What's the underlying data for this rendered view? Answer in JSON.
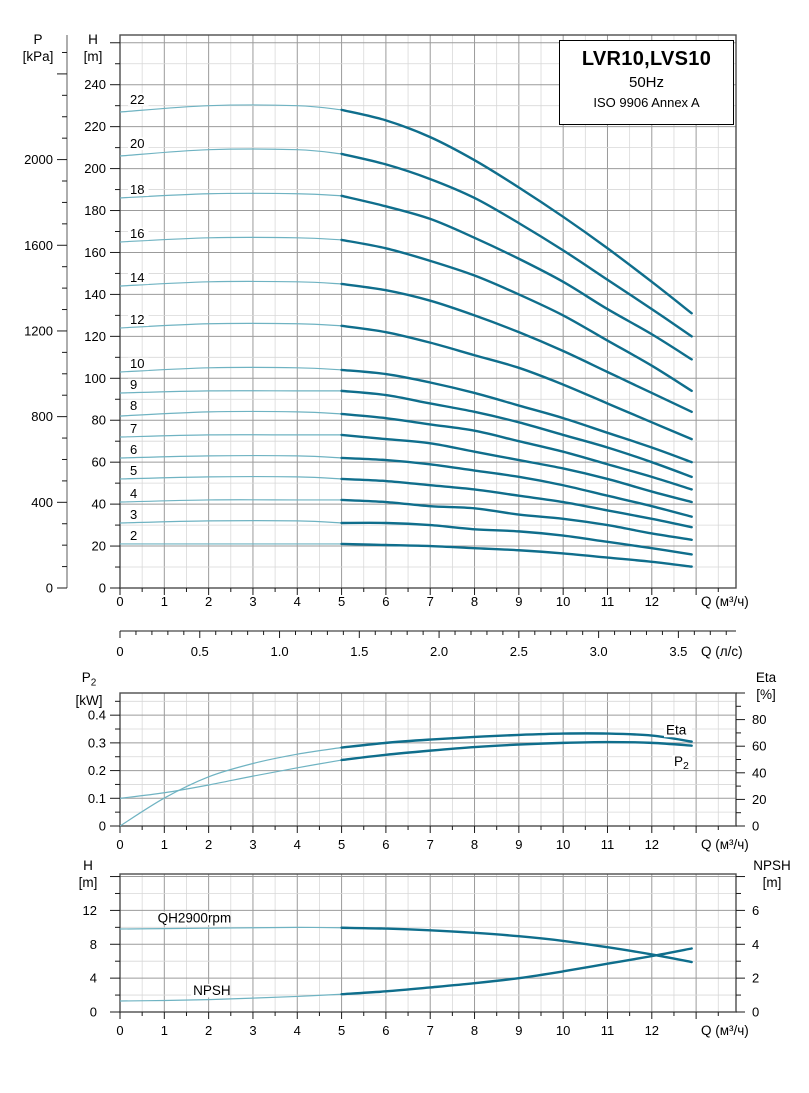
{
  "colors": {
    "curve_thick": "#0f6e8c",
    "curve_thin": "#6fb3c2",
    "grid_minor": "#d8d8d8",
    "grid_major": "#9b9b9b",
    "border": "#4d4d4d",
    "tick": "#1a1a1a",
    "text": "#000000",
    "background": "#ffffff"
  },
  "title_box": {
    "model": "LVR10,LVS10",
    "frequency": "50Hz",
    "standard": "ISO 9906 Annex A"
  },
  "headers": {
    "p": {
      "name": "P",
      "unit": "[kPa]"
    },
    "h_main": {
      "name": "H",
      "unit": "[m]"
    },
    "p2": {
      "name": "P",
      "sub": "2",
      "unit": "[kW]"
    },
    "eta": {
      "name": "Eta",
      "unit": "[%]"
    },
    "h_qh": {
      "name": "H",
      "unit": "[m]"
    },
    "npsh": {
      "name": "NPSH",
      "unit": "[m]"
    }
  },
  "chart_data": [
    {
      "name": "qh-main-chart",
      "type": "line",
      "title": "LVR10,LVS10 50Hz ISO 9906 Annex A",
      "x": {
        "label": "Q (м³/ч)",
        "min": 0,
        "max": 13.9,
        "major": 1,
        "minor": 0.5,
        "tick_values": [
          0,
          1,
          2,
          3,
          4,
          5,
          6,
          7,
          8,
          9,
          10,
          11,
          12
        ],
        "tick_labels": [
          "0",
          "1",
          "2",
          "3",
          "4",
          "5",
          "6",
          "7",
          "8",
          "9",
          "10",
          "11",
          "12"
        ]
      },
      "x2": {
        "label": "Q (л/с)",
        "factor_to_main": 3.6,
        "minor": 0.1,
        "major": 0.5,
        "max": 3.8,
        "tick_values": [
          0,
          0.5,
          1,
          1.5,
          2,
          2.5,
          3,
          3.5
        ],
        "tick_labels": [
          "0",
          "0.5",
          "1.0",
          "1.5",
          "2.0",
          "2.5",
          "3.0",
          "3.5"
        ]
      },
      "y_left": {
        "label": "H [m]",
        "min": 0,
        "max": 263.7,
        "grid_minor": 10,
        "grid_major": 20,
        "tick_values": [
          0,
          20,
          40,
          60,
          80,
          100,
          120,
          140,
          160,
          180,
          200,
          220,
          240
        ],
        "tick_labels": [
          "0",
          "20",
          "40",
          "60",
          "80",
          "100",
          "120",
          "140",
          "160",
          "180",
          "200",
          "220",
          "240"
        ]
      },
      "p_axis": {
        "label": "P [kPa]",
        "kpa_per_m": 9.79,
        "minor": 100,
        "max": 2500,
        "tick_values": [
          0,
          400,
          800,
          1200,
          1600,
          2000
        ],
        "tick_labels": [
          "0",
          "400",
          "800",
          "1200",
          "1600",
          "2000"
        ]
      },
      "split_q": 5,
      "series": [
        {
          "label": "22",
          "label_h": 233,
          "axis": "left",
          "q": [
            0,
            2,
            4,
            5,
            6,
            7,
            8,
            9,
            10,
            11,
            12,
            12.9
          ],
          "v": [
            227,
            230,
            230,
            228,
            223,
            215,
            204,
            191,
            177,
            162,
            146,
            131
          ]
        },
        {
          "label": "20",
          "label_h": 212,
          "axis": "left",
          "q": [
            0,
            2,
            4,
            5,
            6,
            7,
            8,
            9,
            10,
            11,
            12,
            12.9
          ],
          "v": [
            206,
            209,
            209,
            207,
            202,
            195,
            186,
            174,
            161,
            147,
            133,
            120
          ]
        },
        {
          "label": "18",
          "label_h": 190,
          "axis": "left",
          "q": [
            0,
            2,
            4,
            5,
            6,
            7,
            8,
            9,
            10,
            11,
            12,
            12.9
          ],
          "v": [
            186,
            188,
            188,
            187,
            182,
            176,
            167,
            157,
            146,
            133,
            121,
            109
          ]
        },
        {
          "label": "16",
          "label_h": 169,
          "axis": "left",
          "q": [
            0,
            2,
            4,
            5,
            6,
            7,
            8,
            9,
            10,
            11,
            12,
            12.9
          ],
          "v": [
            165,
            167,
            167,
            166,
            162,
            156,
            149,
            140,
            130,
            118,
            106,
            94
          ]
        },
        {
          "label": "14",
          "label_h": 148,
          "axis": "left",
          "q": [
            0,
            2,
            4,
            5,
            6,
            7,
            8,
            9,
            10,
            11,
            12,
            12.9
          ],
          "v": [
            144,
            146,
            146,
            145,
            142,
            137,
            130,
            122,
            113,
            103,
            93,
            84
          ]
        },
        {
          "label": "12",
          "label_h": 128,
          "axis": "left",
          "q": [
            0,
            2,
            4,
            5,
            6,
            7,
            8,
            9,
            10,
            11,
            12,
            12.9
          ],
          "v": [
            124,
            126,
            126,
            125,
            122,
            117,
            111,
            105,
            97,
            88,
            79,
            71
          ]
        },
        {
          "label": "10",
          "label_h": 107,
          "axis": "left",
          "q": [
            0,
            2,
            4,
            5,
            6,
            7,
            8,
            9,
            10,
            11,
            12,
            12.9
          ],
          "v": [
            103,
            105,
            105,
            104,
            102,
            98,
            93,
            87,
            81,
            74,
            67,
            60
          ]
        },
        {
          "label": "9",
          "label_h": 97,
          "axis": "left",
          "q": [
            0,
            2,
            4,
            5,
            6,
            7,
            8,
            9,
            10,
            11,
            12,
            12.9
          ],
          "v": [
            93,
            94,
            94,
            94,
            92,
            88,
            84,
            79,
            73,
            67,
            60,
            53
          ]
        },
        {
          "label": "8",
          "label_h": 87,
          "axis": "left",
          "q": [
            0,
            2,
            4,
            5,
            6,
            7,
            8,
            9,
            10,
            11,
            12,
            12.9
          ],
          "v": [
            82,
            84,
            84,
            83,
            81,
            78,
            75,
            70,
            65,
            59,
            53,
            47
          ]
        },
        {
          "label": "7",
          "label_h": 76,
          "axis": "left",
          "q": [
            0,
            2,
            4,
            5,
            6,
            7,
            8,
            9,
            10,
            11,
            12,
            12.9
          ],
          "v": [
            72,
            73,
            73,
            73,
            71,
            69,
            65,
            61,
            57,
            52,
            46,
            41
          ]
        },
        {
          "label": "6",
          "label_h": 66,
          "axis": "left",
          "q": [
            0,
            2,
            4,
            5,
            6,
            7,
            8,
            9,
            10,
            11,
            12,
            12.9
          ],
          "v": [
            62,
            63,
            63,
            62,
            61,
            59,
            56,
            53,
            49,
            44,
            39,
            34
          ]
        },
        {
          "label": "5",
          "label_h": 56,
          "axis": "left",
          "q": [
            0,
            2,
            4,
            5,
            6,
            7,
            8,
            9,
            10,
            11,
            12,
            12.9
          ],
          "v": [
            52,
            53,
            53,
            52,
            51,
            49,
            47,
            44,
            41,
            37,
            33,
            29
          ]
        },
        {
          "label": "4",
          "label_h": 45,
          "axis": "left",
          "q": [
            0,
            2,
            4,
            5,
            6,
            7,
            8,
            9,
            10,
            11,
            12,
            12.9
          ],
          "v": [
            41,
            42,
            42,
            42,
            41,
            39,
            38,
            35,
            33,
            30,
            26,
            23
          ]
        },
        {
          "label": "3",
          "label_h": 35,
          "axis": "left",
          "q": [
            0,
            2,
            4,
            5,
            6,
            7,
            8,
            9,
            10,
            11,
            12,
            12.9
          ],
          "v": [
            31,
            32,
            32,
            31,
            31,
            30,
            28,
            27,
            25,
            22,
            19,
            16
          ]
        },
        {
          "label": "2",
          "label_h": 25,
          "axis": "left",
          "q": [
            0,
            2,
            4,
            5,
            6,
            7,
            8,
            9,
            10,
            11,
            12,
            12.9
          ],
          "v": [
            21,
            21,
            21,
            21,
            20.5,
            20,
            19,
            18,
            16.5,
            14.5,
            12.5,
            10.2
          ]
        }
      ]
    },
    {
      "name": "power-efficiency-chart",
      "type": "line",
      "x": {
        "label": "Q (м³/ч)",
        "min": 0,
        "max": 13.9,
        "major": 1,
        "minor": 0.5,
        "tick_values": [
          0,
          1,
          2,
          3,
          4,
          5,
          6,
          7,
          8,
          9,
          10,
          11,
          12
        ],
        "tick_labels": [
          "0",
          "1",
          "2",
          "3",
          "4",
          "5",
          "6",
          "7",
          "8",
          "9",
          "10",
          "11",
          "12"
        ]
      },
      "y_left": {
        "label": "P2 [kW]",
        "min": 0,
        "max": 0.48,
        "grid_minor": 0.05,
        "grid_major": 0.1,
        "tick_values": [
          0,
          0.1,
          0.2,
          0.3,
          0.4
        ],
        "tick_labels": [
          "0",
          "0.1",
          "0.2",
          "0.3",
          "0.4"
        ]
      },
      "y_right": {
        "label": "Eta [%]",
        "min": 0,
        "max": 100,
        "minor": 10,
        "major": 20,
        "tick_values": [
          0,
          20,
          40,
          60,
          80
        ],
        "tick_labels": [
          "0",
          "20",
          "40",
          "60",
          "80"
        ]
      },
      "split_q": 5,
      "series": [
        {
          "label": "P2",
          "axis": "left",
          "q": [
            0,
            1,
            2,
            3,
            4,
            5,
            6,
            7,
            8,
            9,
            10,
            11,
            12,
            12.9
          ],
          "v": [
            0.1,
            0.12,
            0.148,
            0.18,
            0.21,
            0.238,
            0.257,
            0.272,
            0.285,
            0.294,
            0.3,
            0.303,
            0.3,
            0.29
          ]
        },
        {
          "label": "Eta",
          "axis": "right",
          "q": [
            0,
            1,
            2,
            3,
            4,
            5,
            6,
            7,
            8,
            9,
            10,
            11,
            12,
            12.9
          ],
          "v": [
            0,
            21,
            37,
            47,
            54,
            59,
            62.5,
            65,
            67,
            68.5,
            69.5,
            69.5,
            68,
            63.5
          ]
        }
      ],
      "annotations": [
        {
          "text": "Eta",
          "q": 12.32,
          "v": 72,
          "axis": "right"
        },
        {
          "text": "P",
          "sub": "2",
          "q": 12.5,
          "v": 0.233,
          "axis": "left"
        }
      ]
    },
    {
      "name": "qh-npsh-chart",
      "type": "line",
      "x": {
        "label": "Q (м³/ч)",
        "min": 0,
        "max": 13.9,
        "major": 1,
        "minor": 0.5,
        "tick_values": [
          0,
          1,
          2,
          3,
          4,
          5,
          6,
          7,
          8,
          9,
          10,
          11,
          12
        ],
        "tick_labels": [
          "0",
          "1",
          "2",
          "3",
          "4",
          "5",
          "6",
          "7",
          "8",
          "9",
          "10",
          "11",
          "12"
        ]
      },
      "y_left": {
        "label": "H [m]",
        "min": 0,
        "max": 16.3,
        "grid_minor": 2,
        "grid_major": 4,
        "tick_values": [
          0,
          4,
          8,
          12
        ],
        "tick_labels": [
          "0",
          "4",
          "8",
          "12"
        ]
      },
      "y_right": {
        "label": "NPSH [m]",
        "min": 0,
        "max": 8.15,
        "minor": 1,
        "major": 2,
        "tick_values": [
          0,
          2,
          4,
          6
        ],
        "tick_labels": [
          "0",
          "2",
          "4",
          "6"
        ]
      },
      "split_q": 5,
      "series": [
        {
          "label": "QH2900rpm",
          "axis": "left",
          "q": [
            0,
            1,
            2,
            3,
            4,
            5,
            6,
            7,
            8,
            9,
            10,
            11,
            12,
            12.9
          ],
          "v": [
            9.8,
            9.85,
            9.9,
            9.95,
            10.0,
            9.95,
            9.85,
            9.65,
            9.35,
            8.95,
            8.4,
            7.65,
            6.8,
            5.9
          ]
        },
        {
          "label": "NPSH",
          "axis": "right",
          "q": [
            0,
            1,
            2,
            3,
            4,
            5,
            6,
            7,
            8,
            9,
            10,
            11,
            12,
            12.9
          ],
          "v": [
            0.65,
            0.68,
            0.73,
            0.82,
            0.92,
            1.05,
            1.22,
            1.45,
            1.7,
            2.0,
            2.4,
            2.85,
            3.3,
            3.75
          ]
        }
      ],
      "annotations": [
        {
          "text": "QH2900rpm",
          "q": 0.85,
          "v": 11.1,
          "axis": "left"
        },
        {
          "text": "NPSH",
          "q": 1.65,
          "v": 2.55,
          "axis": "left"
        }
      ]
    }
  ]
}
